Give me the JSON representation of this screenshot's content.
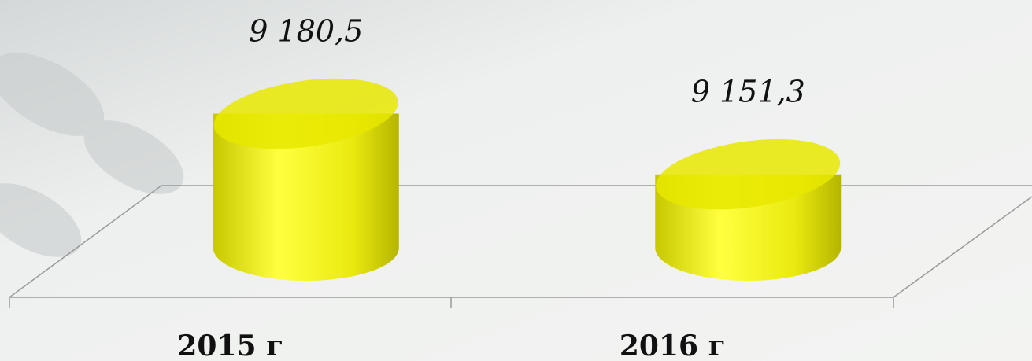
{
  "chart_data": {
    "type": "cylinder-bar",
    "categories": [
      "2015 г",
      "2016 г"
    ],
    "values": [
      9180.5,
      9151.3
    ],
    "value_labels": [
      "9 180,5",
      "9 151,3"
    ],
    "color": "#e8e800",
    "ylim": [
      9116,
      9200
    ]
  }
}
